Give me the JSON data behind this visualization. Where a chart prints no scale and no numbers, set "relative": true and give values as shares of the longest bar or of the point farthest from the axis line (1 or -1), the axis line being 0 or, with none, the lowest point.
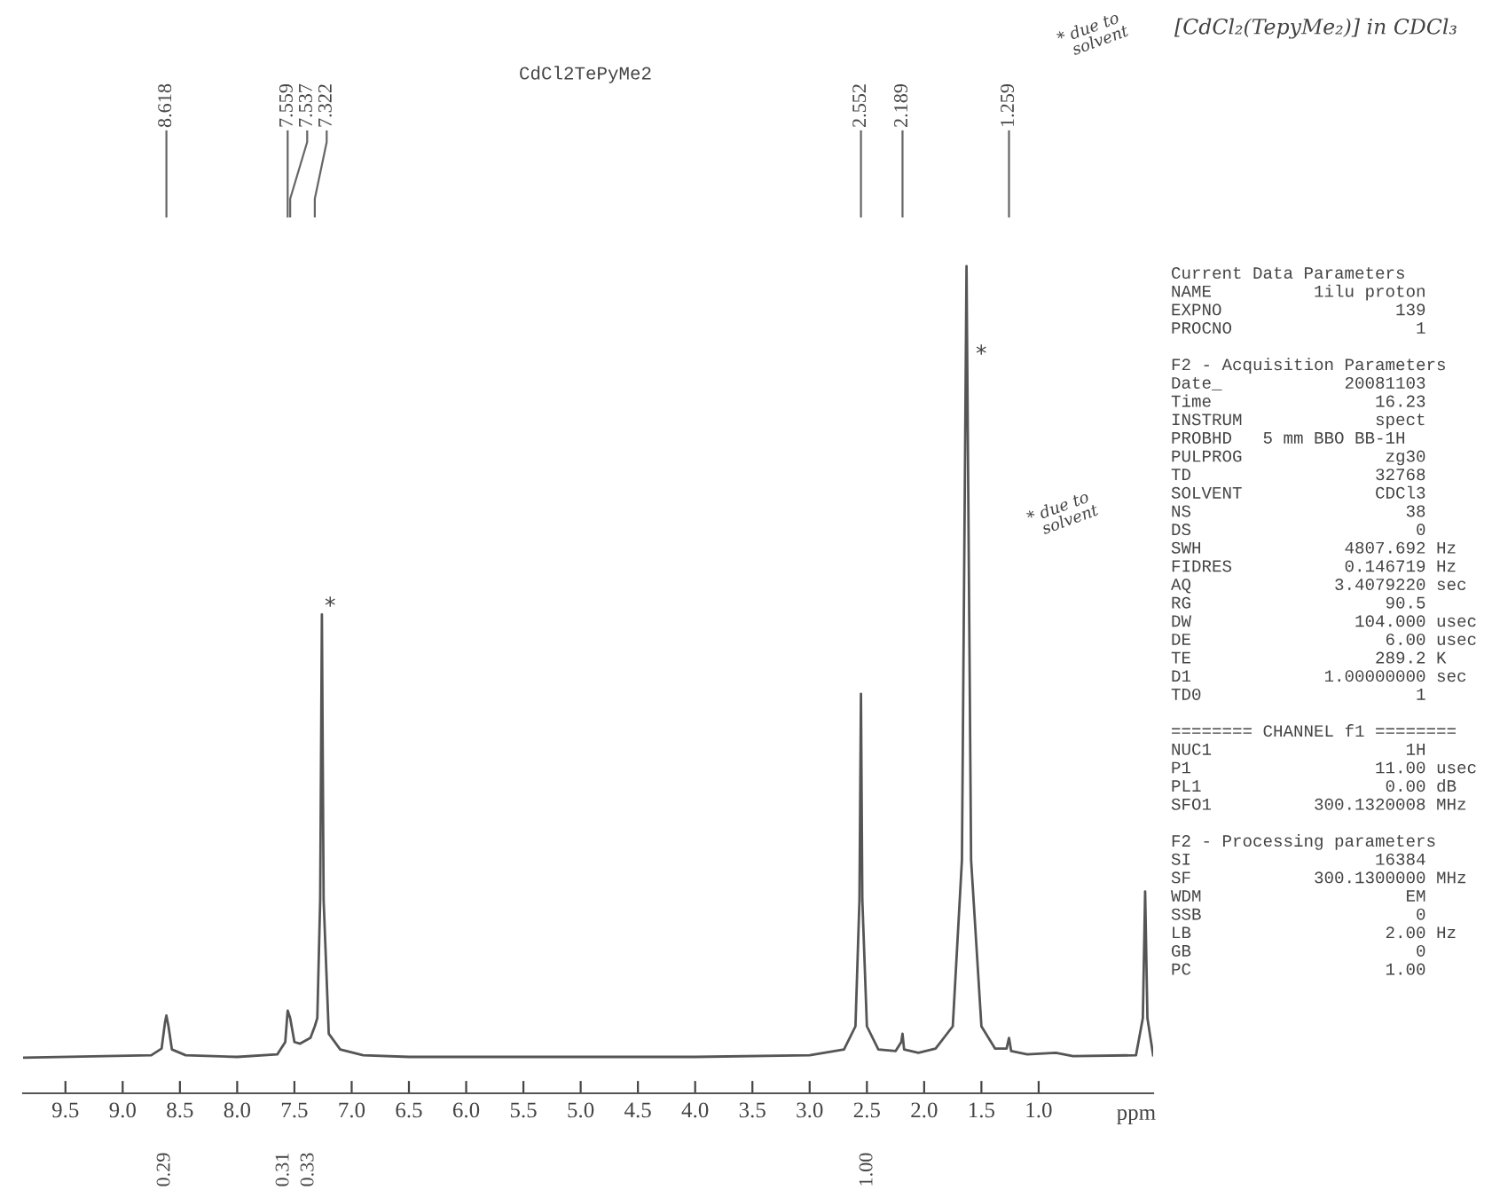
{
  "chart_data": {
    "type": "line",
    "title": "CdCl2TePyMe2",
    "xlabel": "ppm",
    "relative": true,
    "xlim": [
      9.87,
      0.0
    ],
    "xticks": [
      {
        "value": 9.5,
        "label": "9.5"
      },
      {
        "value": 9.0,
        "label": "9.0"
      },
      {
        "value": 8.5,
        "label": "8.5"
      },
      {
        "value": 8.0,
        "label": "8.0"
      },
      {
        "value": 7.5,
        "label": "7.5"
      },
      {
        "value": 7.0,
        "label": "7.0"
      },
      {
        "value": 6.5,
        "label": "6.5"
      },
      {
        "value": 6.0,
        "label": "6.0"
      },
      {
        "value": 5.5,
        "label": "5.5"
      },
      {
        "value": 5.0,
        "label": "5.0"
      },
      {
        "value": 4.5,
        "label": "4.5"
      },
      {
        "value": 4.0,
        "label": "4.0"
      },
      {
        "value": 3.5,
        "label": "3.5"
      },
      {
        "value": 3.0,
        "label": "3.0"
      },
      {
        "value": 2.5,
        "label": "2.5"
      },
      {
        "value": 2.0,
        "label": "2.0"
      },
      {
        "value": 1.5,
        "label": "1.5"
      },
      {
        "value": 1.0,
        "label": "1.0"
      }
    ],
    "grid": false,
    "tick_labels": "x",
    "series": [
      {
        "color": "#555555",
        "x": [
          9.87,
          8.75,
          8.66,
          8.63,
          8.618,
          8.6,
          8.57,
          8.45,
          8.0,
          7.65,
          7.58,
          7.559,
          7.537,
          7.5,
          7.45,
          7.36,
          7.322,
          7.3,
          7.275,
          7.26,
          7.245,
          7.2,
          7.1,
          6.9,
          6.5,
          4.0,
          3.0,
          2.7,
          2.6,
          2.565,
          2.552,
          2.54,
          2.5,
          2.4,
          2.25,
          2.2,
          2.189,
          2.175,
          2.05,
          1.9,
          1.75,
          1.67,
          1.63,
          1.59,
          1.5,
          1.38,
          1.28,
          1.259,
          1.24,
          1.1,
          0.85,
          0.7,
          0.15,
          0.09,
          0.07,
          0.05,
          0.0
        ],
        "values": [
          0.043,
          0.046,
          0.054,
          0.086,
          0.094,
          0.081,
          0.053,
          0.046,
          0.044,
          0.047,
          0.062,
          0.1,
          0.091,
          0.062,
          0.06,
          0.067,
          0.081,
          0.091,
          0.234,
          0.579,
          0.234,
          0.072,
          0.053,
          0.046,
          0.044,
          0.044,
          0.046,
          0.053,
          0.081,
          0.234,
          0.483,
          0.234,
          0.081,
          0.053,
          0.051,
          0.062,
          0.072,
          0.053,
          0.049,
          0.054,
          0.081,
          0.282,
          1.0,
          0.282,
          0.081,
          0.054,
          0.054,
          0.067,
          0.051,
          0.047,
          0.049,
          0.045,
          0.046,
          0.091,
          0.244,
          0.091,
          0.046
        ]
      }
    ],
    "annotations": [
      {
        "text": "8.618",
        "x": 8.618
      },
      {
        "text": "7.559",
        "x": 7.559
      },
      {
        "text": "7.537",
        "x": 7.537
      },
      {
        "text": "7.322",
        "x": 7.322
      },
      {
        "text": "2.552",
        "x": 2.552
      },
      {
        "text": "2.189",
        "x": 2.189
      },
      {
        "text": "1.259",
        "x": 1.259
      },
      "Current Data Parameters\nNAME          1ilu proton\nEXPNO                 139\nPROCNO                  1\n\nF2 - Acquisition Parameters\nDate_            20081103\nTime                16.23\nINSTRUM             spect\nPROBHD   5 mm BBO BB-1H\nPULPROG              zg30\nTD                  32768\nSOLVENT             CDCl3\nNS                     38\nDS                      0\nSWH              4807.692 Hz\nFIDRES           0.146719 Hz\nAQ              3.4079220 sec\nRG                   90.5\nDW                104.000 usec\nDE                   6.00 usec\nTE                  289.2 K\nD1             1.00000000 sec\nTD0                     1\n\n======== CHANNEL f1 ========\nNUC1                   1H\nP1                  11.00 usec\nPL1                  0.00 dB\nSFO1          300.1320008 MHz\n\nF2 - Processing parameters\nSI                  16384\nSF            300.1300000 MHz\nWDM                    EM\nSSB                     0\nLB                   2.00 Hz\nGB                      0\nPC                   1.00",
      "[CdCl₂(TepyMe₂)] in CDCl₃",
      "* due to\n  solvent",
      "* due to\n  solvent",
      "*",
      "*",
      "0.29",
      "0.31",
      "0.33",
      "1.00"
    ]
  }
}
